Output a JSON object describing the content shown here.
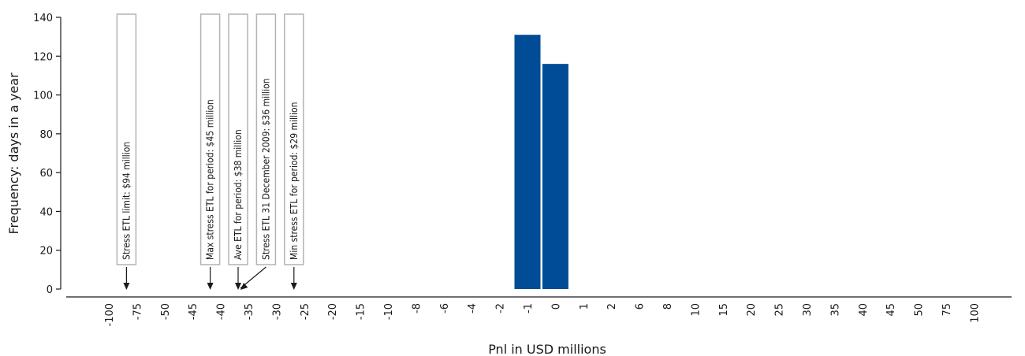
{
  "chart_data": {
    "type": "bar",
    "title": "",
    "xlabel": "Pnl in USD millions",
    "ylabel": "Frequency: days in a year",
    "ylim": [
      0,
      140
    ],
    "yticks": [
      0,
      20,
      40,
      60,
      80,
      100,
      120,
      140
    ],
    "categories": [
      "-100",
      "-75",
      "-50",
      "-45",
      "-40",
      "-35",
      "-30",
      "-25",
      "-20",
      "-15",
      "-10",
      "-8",
      "-6",
      "-4",
      "-2",
      "-1",
      "0",
      "1",
      "2",
      "6",
      "8",
      "10",
      "15",
      "20",
      "25",
      "30",
      "35",
      "40",
      "45",
      "50",
      "75",
      "100"
    ],
    "values": [
      0,
      0,
      0,
      0,
      0,
      0,
      0,
      0,
      0,
      0,
      0,
      0,
      0,
      0,
      0,
      131,
      116,
      0,
      0,
      0,
      0,
      0,
      0,
      0,
      0,
      0,
      0,
      0,
      0,
      0,
      0,
      0
    ],
    "bar_color": "#004C97",
    "annotations": [
      {
        "text": "Stress ETL limit: $94 million",
        "box_category": "-75",
        "arrow_category": "-75"
      },
      {
        "text": "Max stress ETL for period: $45 million",
        "box_category": "-40",
        "arrow_category": "-40"
      },
      {
        "text": "Ave ETL for period: $38 million",
        "box_category": "-35",
        "arrow_category": "-35"
      },
      {
        "text": "Stress ETL 31 December 2009: $36 million",
        "box_category": "-30",
        "arrow_category": "-35"
      },
      {
        "text": "Min stress ETL for period: $29 million",
        "box_category": "-25",
        "arrow_category": "-25"
      }
    ],
    "annotation_box_color": "#b3b3b3",
    "grid": false,
    "legend": "none"
  }
}
